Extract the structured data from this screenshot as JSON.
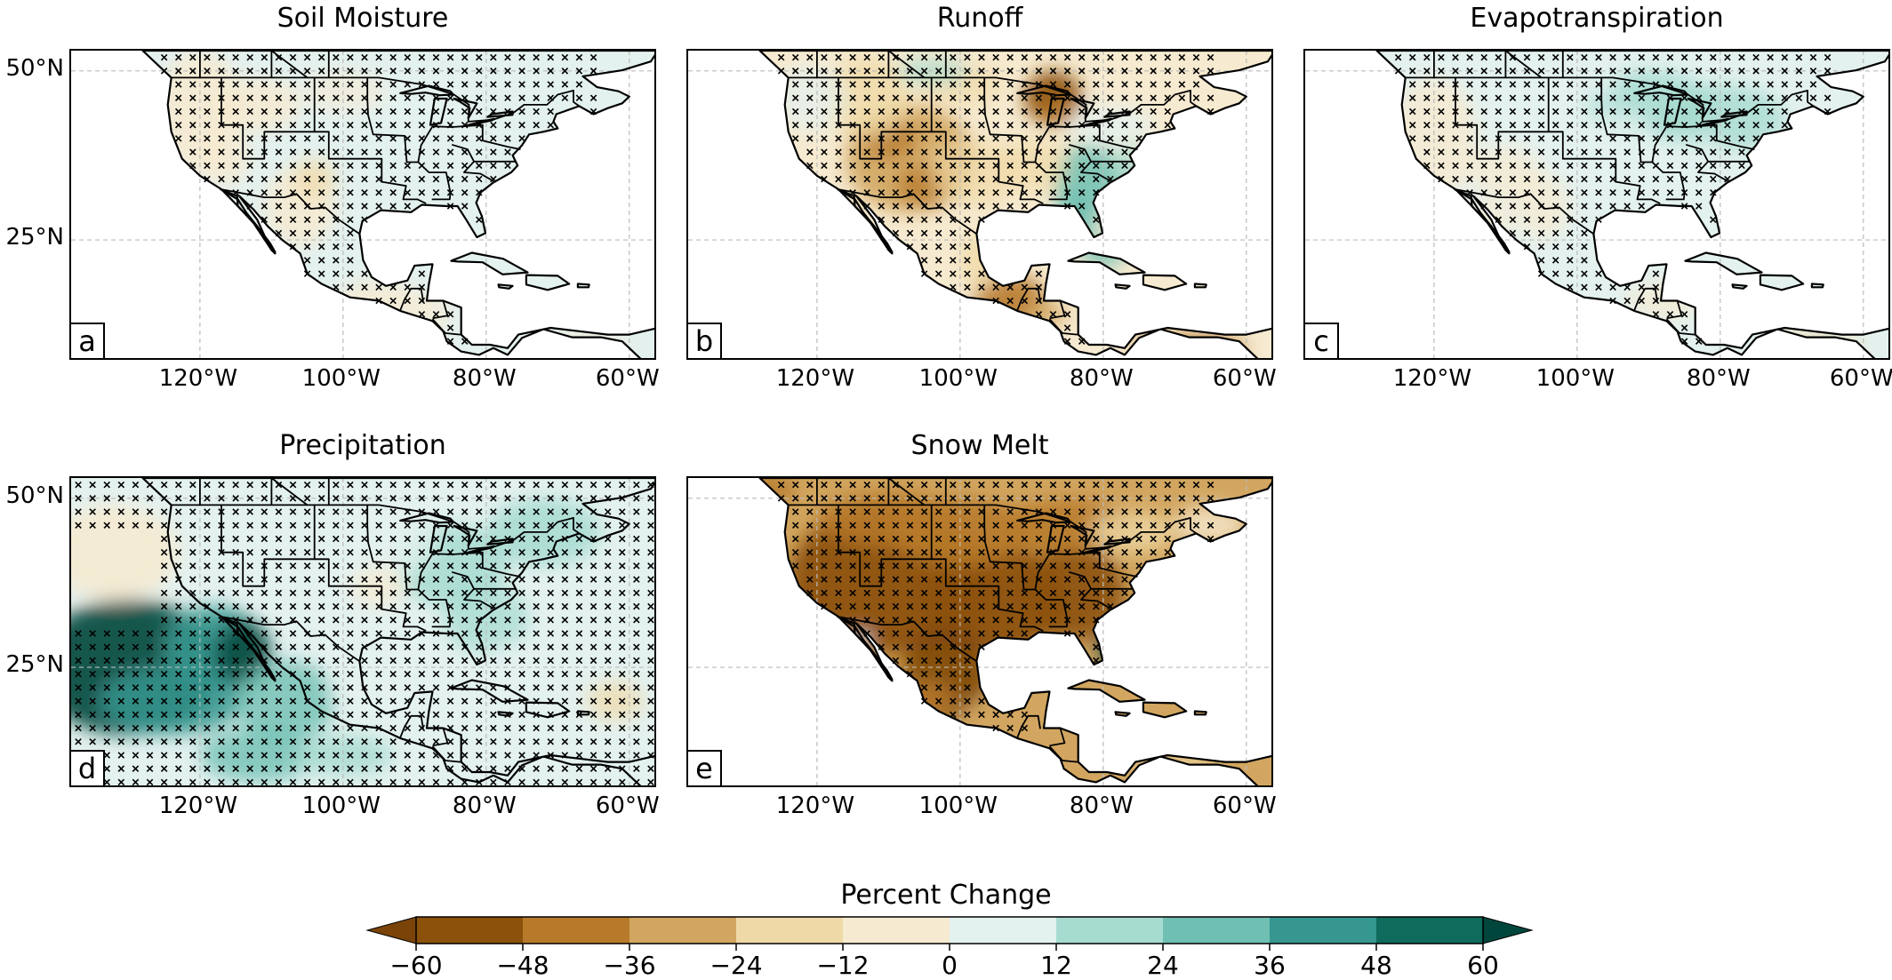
{
  "panels": [
    {
      "id": "a",
      "title": "Soil Moisture",
      "letter": "a",
      "kind": "soil"
    },
    {
      "id": "b",
      "title": "Runoff",
      "letter": "b",
      "kind": "runoff"
    },
    {
      "id": "c",
      "title": "Evapotranspiration",
      "letter": "c",
      "kind": "et"
    },
    {
      "id": "d",
      "title": "Precipitation",
      "letter": "d",
      "kind": "precip"
    },
    {
      "id": "e",
      "title": "Snow Melt",
      "letter": "e",
      "kind": "snow"
    }
  ],
  "axes": {
    "lat_labels": [
      "50°N",
      "25°N"
    ],
    "lon_labels": [
      "120°W",
      "100°W",
      "80°W",
      "60°W"
    ]
  },
  "colorbar": {
    "title": "Percent Change",
    "ticks": [
      "−60",
      "−48",
      "−36",
      "−24",
      "−12",
      "0",
      "12",
      "24",
      "36",
      "48",
      "60"
    ],
    "colors": [
      "#8c510a",
      "#b77a2b",
      "#d2a660",
      "#efd9a6",
      "#f6ead0",
      "#e3f1ef",
      "#a6dbd0",
      "#6fbfb3",
      "#35978f",
      "#0f6b5c"
    ],
    "extend_low": "#7a4307",
    "extend_high": "#01463c"
  }
}
